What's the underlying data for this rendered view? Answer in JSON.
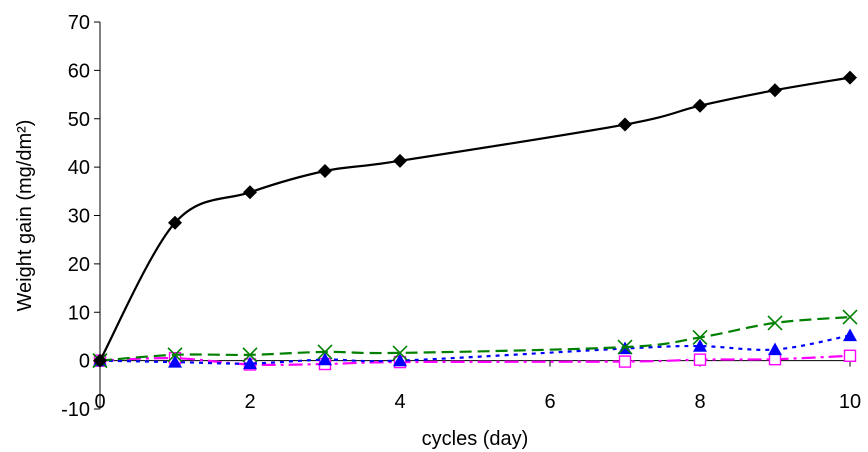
{
  "chart_data": {
    "type": "line",
    "title": "",
    "xlabel": "cycles (day)",
    "ylabel": "Weight gain (mg/dm²)",
    "xlim": [
      0,
      10
    ],
    "ylim": [
      -10,
      70
    ],
    "x_ticks": [
      0,
      2,
      4,
      6,
      8,
      10
    ],
    "y_ticks": [
      -10,
      0,
      10,
      20,
      30,
      40,
      50,
      60,
      70
    ],
    "x_tick_labels": [
      "0",
      "2",
      "4",
      "6",
      "8",
      "10"
    ],
    "y_tick_labels": [
      "-10",
      "0",
      "10",
      "20",
      "30",
      "40",
      "50",
      "60",
      "70"
    ],
    "grid": false,
    "legend": "none",
    "series": [
      {
        "color": "#000000",
        "marker": "diamond",
        "line_style": "solid",
        "x": [
          0,
          1,
          2,
          3,
          4,
          7,
          8,
          9,
          10
        ],
        "values": [
          0,
          28.5,
          34.8,
          39.2,
          41.3,
          48.8,
          52.7,
          55.9,
          58.5
        ]
      },
      {
        "color": "#008000",
        "marker": "x",
        "line_style": "dashed",
        "x": [
          0,
          1,
          2,
          3,
          4,
          7,
          8,
          9,
          10
        ],
        "values": [
          0,
          1.2,
          1.2,
          1.8,
          1.6,
          2.8,
          4.8,
          7.8,
          9.0
        ]
      },
      {
        "color": "#0000ff",
        "marker": "triangle",
        "line_style": "dotted",
        "x": [
          0,
          1,
          2,
          3,
          4,
          7,
          8,
          9,
          10
        ],
        "values": [
          0,
          -0.3,
          -0.6,
          0.2,
          0.0,
          2.5,
          3.0,
          2.3,
          5.2
        ]
      },
      {
        "color": "#ff00ff",
        "marker": "square-open",
        "line_style": "dash-dot",
        "x": [
          0,
          1,
          2,
          3,
          4,
          7,
          8,
          9,
          10
        ],
        "values": [
          0,
          0.5,
          -0.8,
          -0.7,
          -0.3,
          -0.2,
          0.2,
          0.3,
          1.0
        ]
      }
    ]
  }
}
